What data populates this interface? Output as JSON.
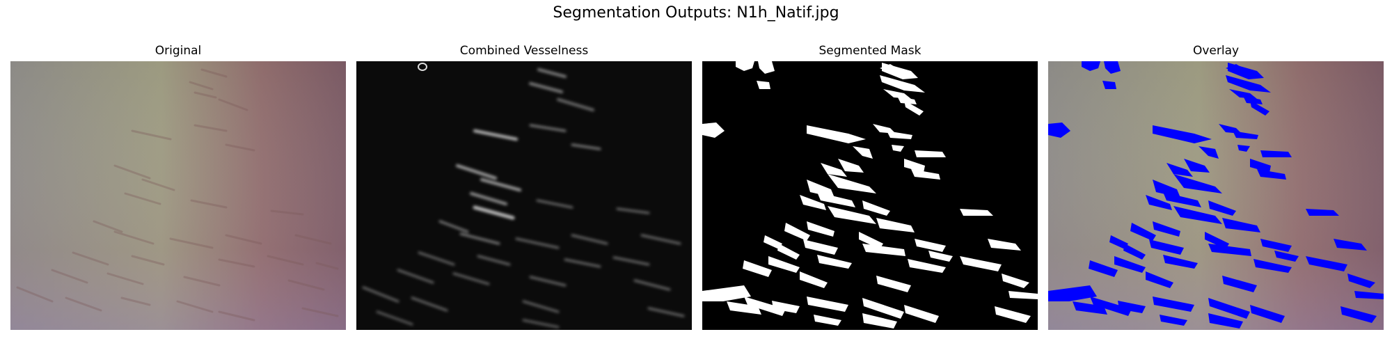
{
  "figure": {
    "suptitle": "Segmentation Outputs: N1h_Natif.jpg",
    "panels": [
      {
        "title": "Original"
      },
      {
        "title": "Combined Vesselness"
      },
      {
        "title": "Segmented Mask"
      },
      {
        "title": "Overlay"
      }
    ]
  },
  "colors": {
    "mask_fg": "#ffffff",
    "mask_bg": "#000000",
    "overlay_fg": "#0000ff",
    "tissue_left": "#8e8f7f",
    "tissue_right": "#7a5a63"
  }
}
